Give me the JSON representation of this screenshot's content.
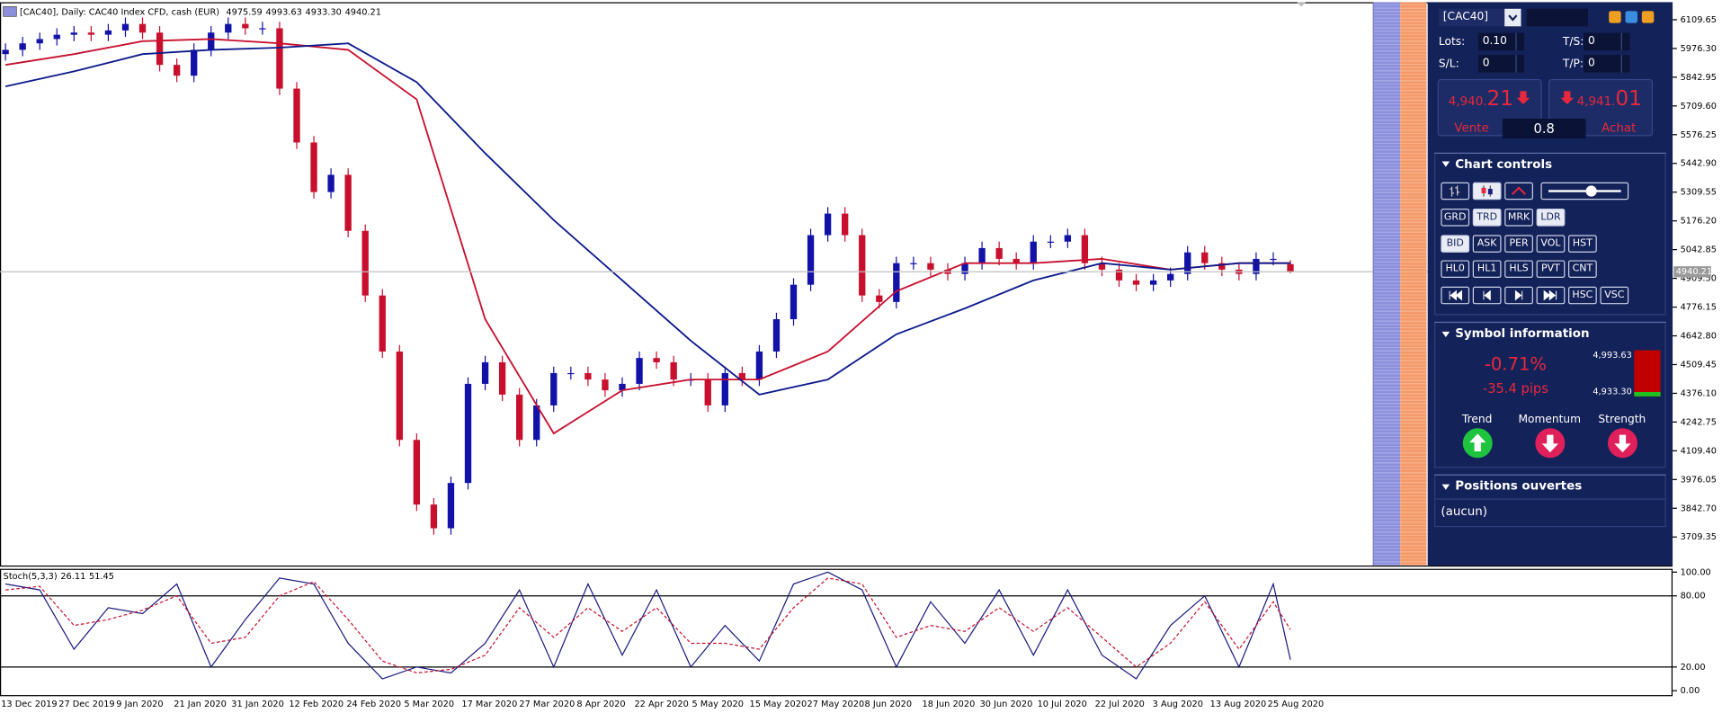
{
  "chart_data": [
    {
      "type": "candlestick",
      "title": "[CAC40], Daily:  CAC40 Index CFD, cash (EUR)",
      "ohlc_labels": [
        "4975.59",
        "4993.63",
        "4933.30",
        "4940.21"
      ],
      "up_color": "#1212a8",
      "down_color": "#c8102e",
      "open": [
        5950,
        5970,
        6000,
        6020,
        6040,
        6050,
        6040,
        6060,
        6090,
        6050,
        5900,
        5850,
        5970,
        6050,
        6090,
        6070,
        6070,
        5790,
        5540,
        5310,
        5390,
        5130,
        4830,
        4570,
        4160,
        3860,
        3750,
        3960,
        4420,
        4520,
        4370,
        4160,
        4320,
        4470,
        4470,
        4440,
        4390,
        4420,
        4540,
        4520,
        4440,
        4440,
        4320,
        4470,
        4440,
        4570,
        4720,
        4880,
        5110,
        5210,
        5110,
        4830,
        4800,
        4980,
        4980,
        4950,
        4930,
        4980,
        5050,
        5000,
        4980,
        5080,
        5080,
        5110,
        4980,
        4950,
        4900,
        4880,
        4900,
        4930,
        5030,
        4980,
        4950,
        4930,
        5000,
        4975.59
      ],
      "high": [
        6000,
        6030,
        6050,
        6070,
        6080,
        6080,
        6090,
        6120,
        6120,
        6080,
        5930,
        6000,
        6080,
        6120,
        6120,
        6100,
        6100,
        5820,
        5570,
        5420,
        5420,
        5160,
        4860,
        4600,
        4190,
        3890,
        3990,
        4450,
        4550,
        4550,
        4400,
        4350,
        4500,
        4500,
        4500,
        4470,
        4450,
        4570,
        4570,
        4550,
        4470,
        4470,
        4500,
        4500,
        4600,
        4750,
        4910,
        5140,
        5240,
        5240,
        5140,
        4860,
        5010,
        5010,
        5010,
        4980,
        5010,
        5080,
        5080,
        5030,
        5110,
        5110,
        5140,
        5140,
        5010,
        4980,
        4930,
        4930,
        4960,
        5060,
        5060,
        5010,
        4980,
        5030,
        5030,
        4993.63
      ],
      "low": [
        5920,
        5940,
        5970,
        5990,
        6010,
        6010,
        6010,
        6030,
        6020,
        5870,
        5820,
        5820,
        5940,
        6020,
        6040,
        6040,
        5760,
        5510,
        5280,
        5280,
        5100,
        4800,
        4540,
        4130,
        3830,
        3720,
        3720,
        3930,
        4390,
        4340,
        4130,
        4130,
        4290,
        4440,
        4410,
        4360,
        4360,
        4390,
        4490,
        4410,
        4410,
        4290,
        4290,
        4410,
        4410,
        4540,
        4690,
        4850,
        5080,
        5080,
        4800,
        4770,
        4770,
        4950,
        4920,
        4900,
        4900,
        4950,
        4970,
        4950,
        4950,
        5050,
        5050,
        4950,
        4920,
        4870,
        4850,
        4850,
        4870,
        4900,
        4950,
        4920,
        4900,
        4900,
        4970,
        4933.3
      ],
      "close": [
        5970,
        6000,
        6020,
        6040,
        6050,
        6040,
        6060,
        6090,
        6050,
        5900,
        5850,
        5970,
        6050,
        6090,
        6070,
        6070,
        5790,
        5540,
        5310,
        5390,
        5130,
        4830,
        4570,
        4160,
        3860,
        3750,
        3960,
        4420,
        4520,
        4370,
        4160,
        4320,
        4470,
        4470,
        4440,
        4390,
        4420,
        4540,
        4520,
        4440,
        4440,
        4320,
        4470,
        4440,
        4570,
        4720,
        4880,
        5110,
        5210,
        5110,
        4830,
        4800,
        4980,
        4980,
        4950,
        4930,
        4980,
        5050,
        5000,
        4980,
        5080,
        5080,
        5110,
        4980,
        4950,
        4900,
        4880,
        4900,
        4930,
        5030,
        4980,
        4950,
        4930,
        5000,
        5000,
        4940.21
      ],
      "overlay_x": [
        0,
        4,
        8,
        12,
        16,
        20,
        24,
        28,
        32,
        36,
        40,
        44,
        48,
        52,
        56,
        60,
        64,
        68,
        72,
        75
      ],
      "overlays": [
        {
          "color": "#c8102e",
          "values": [
            5900,
            5950,
            6010,
            6020,
            6000,
            5970,
            5740,
            4720,
            4190,
            4390,
            4440,
            4440,
            4570,
            4850,
            4980,
            4980,
            5000,
            4950,
            4980,
            4980
          ]
        },
        {
          "color": "#0c1a8c",
          "values": [
            5800,
            5870,
            5950,
            5970,
            5980,
            6000,
            5820,
            5490,
            5180,
            4900,
            4620,
            4370,
            4440,
            4650,
            4770,
            4900,
            4980,
            4950,
            4980,
            4980
          ]
        }
      ],
      "ylim": [
        3577,
        6191
      ],
      "yticks": [
        {
          "value": 6109.65,
          "label": "6109.65"
        },
        {
          "value": 5976.3,
          "label": "5976.30"
        },
        {
          "value": 5842.95,
          "label": "5842.95"
        },
        {
          "value": 5709.6,
          "label": "5709.60"
        },
        {
          "value": 5576.25,
          "label": "5576.25"
        },
        {
          "value": 5442.9,
          "label": "5442.90"
        },
        {
          "value": 5309.55,
          "label": "5309.55"
        },
        {
          "value": 5176.2,
          "label": "5176.20"
        },
        {
          "value": 5042.85,
          "label": "5042.85"
        },
        {
          "value": 4909.5,
          "label": "4909.50"
        },
        {
          "value": 4776.15,
          "label": "4776.15"
        },
        {
          "value": 4642.8,
          "label": "4642.80"
        },
        {
          "value": 4509.45,
          "label": "4509.45"
        },
        {
          "value": 4376.1,
          "label": "4376.10"
        },
        {
          "value": 4242.75,
          "label": "4242.75"
        },
        {
          "value": 4109.4,
          "label": "4109.40"
        },
        {
          "value": 3976.05,
          "label": "3976.05"
        },
        {
          "value": 3842.7,
          "label": "3842.70"
        },
        {
          "value": 3709.35,
          "label": "3709.35"
        }
      ],
      "dates": [
        "13 Dec 2019",
        "27 Dec 2019",
        "9 Jan 2020",
        "21 Jan 2020",
        "31 Jan 2020",
        "12 Feb 2020",
        "24 Feb 2020",
        "5 Mar 2020",
        "17 Mar 2020",
        "27 Mar 2020",
        "8 Apr 2020",
        "22 Apr 2020",
        "5 May 2020",
        "15 May 2020",
        "27 May 2020",
        "8 Jun 2020",
        "18 Jun 2020",
        "30 Jun 2020",
        "10 Jul 2020",
        "22 Jul 2020",
        "3 Aug 2020",
        "13 Aug 2020",
        "25 Aug 2020"
      ]
    },
    {
      "type": "line",
      "title": "Stoch(5,3,3)",
      "x": [
        0,
        2,
        4,
        6,
        8,
        10,
        12,
        14,
        16,
        18,
        20,
        22,
        24,
        26,
        28,
        30,
        32,
        34,
        36,
        38,
        40,
        42,
        44,
        46,
        48,
        50,
        52,
        54,
        56,
        58,
        60,
        62,
        64,
        66,
        68,
        70,
        72,
        74,
        75
      ],
      "series": [
        {
          "color": "#1a1a80",
          "dash": false,
          "values": [
            90,
            85,
            35,
            70,
            65,
            90,
            20,
            60,
            95,
            90,
            40,
            10,
            20,
            15,
            40,
            85,
            20,
            90,
            30,
            85,
            20,
            55,
            25,
            90,
            100,
            85,
            20,
            75,
            40,
            85,
            30,
            85,
            30,
            10,
            55,
            80,
            20,
            90,
            26.11
          ]
        },
        {
          "color": "#c8102e",
          "dash": true,
          "values": [
            85,
            88,
            55,
            60,
            68,
            80,
            40,
            45,
            80,
            92,
            60,
            25,
            15,
            18,
            30,
            70,
            45,
            70,
            50,
            70,
            40,
            40,
            35,
            70,
            95,
            90,
            45,
            55,
            50,
            70,
            50,
            70,
            45,
            20,
            40,
            75,
            35,
            75,
            51.45
          ]
        }
      ],
      "ylim": [
        -3.7,
        102.8
      ],
      "yticks": [
        {
          "value": 100,
          "label": "100.00"
        },
        {
          "value": 80,
          "label": "80.00"
        },
        {
          "value": 20,
          "label": "20.00"
        },
        {
          "value": 0,
          "label": "0.00"
        }
      ]
    }
  ],
  "panel": {
    "symbol": "[CAC40]",
    "lots_label": "Lots:",
    "lots": "0.10",
    "ts_label": "T/S:",
    "ts": "0",
    "sl_label": "S/L:",
    "sl": "0",
    "tp_label": "T/P:",
    "tp": "0",
    "bid_main": "4,940.",
    "bid_pips": "21",
    "sell": "Vente",
    "spread": "0.8",
    "ask_main": "4,941.",
    "ask_pips": "01",
    "buy": "Achat",
    "chart_controls": {
      "title": "Chart controls",
      "button_rows": [
        [
          {
            "label": "GRD"
          },
          {
            "label": "TRD",
            "active": true
          },
          {
            "label": "MRK"
          },
          {
            "label": "LDR",
            "active": true
          }
        ],
        [
          {
            "label": "BID",
            "active": true
          },
          {
            "label": "ASK"
          },
          {
            "label": "PER"
          },
          {
            "label": "VOL"
          },
          {
            "label": "HST"
          }
        ],
        [
          {
            "label": "HL0"
          },
          {
            "label": "HL1"
          },
          {
            "label": "HLS"
          },
          {
            "label": "PVT"
          },
          {
            "label": "CNT"
          }
        ],
        [
          {
            "label": "HSC"
          },
          {
            "label": "VSC"
          }
        ]
      ]
    },
    "symbol_info": {
      "title": "Symbol information",
      "change": "-0.71%",
      "pips": "-35.4 pips",
      "high": "4,993.63",
      "low": "4,933.30",
      "indicators": [
        {
          "label": "Trend",
          "direction": "up"
        },
        {
          "label": "Momentum",
          "direction": "down"
        },
        {
          "label": "Strength",
          "direction": "down"
        }
      ]
    },
    "positions": {
      "title": "Positions ouvertes",
      "empty": "(aucun)"
    }
  }
}
